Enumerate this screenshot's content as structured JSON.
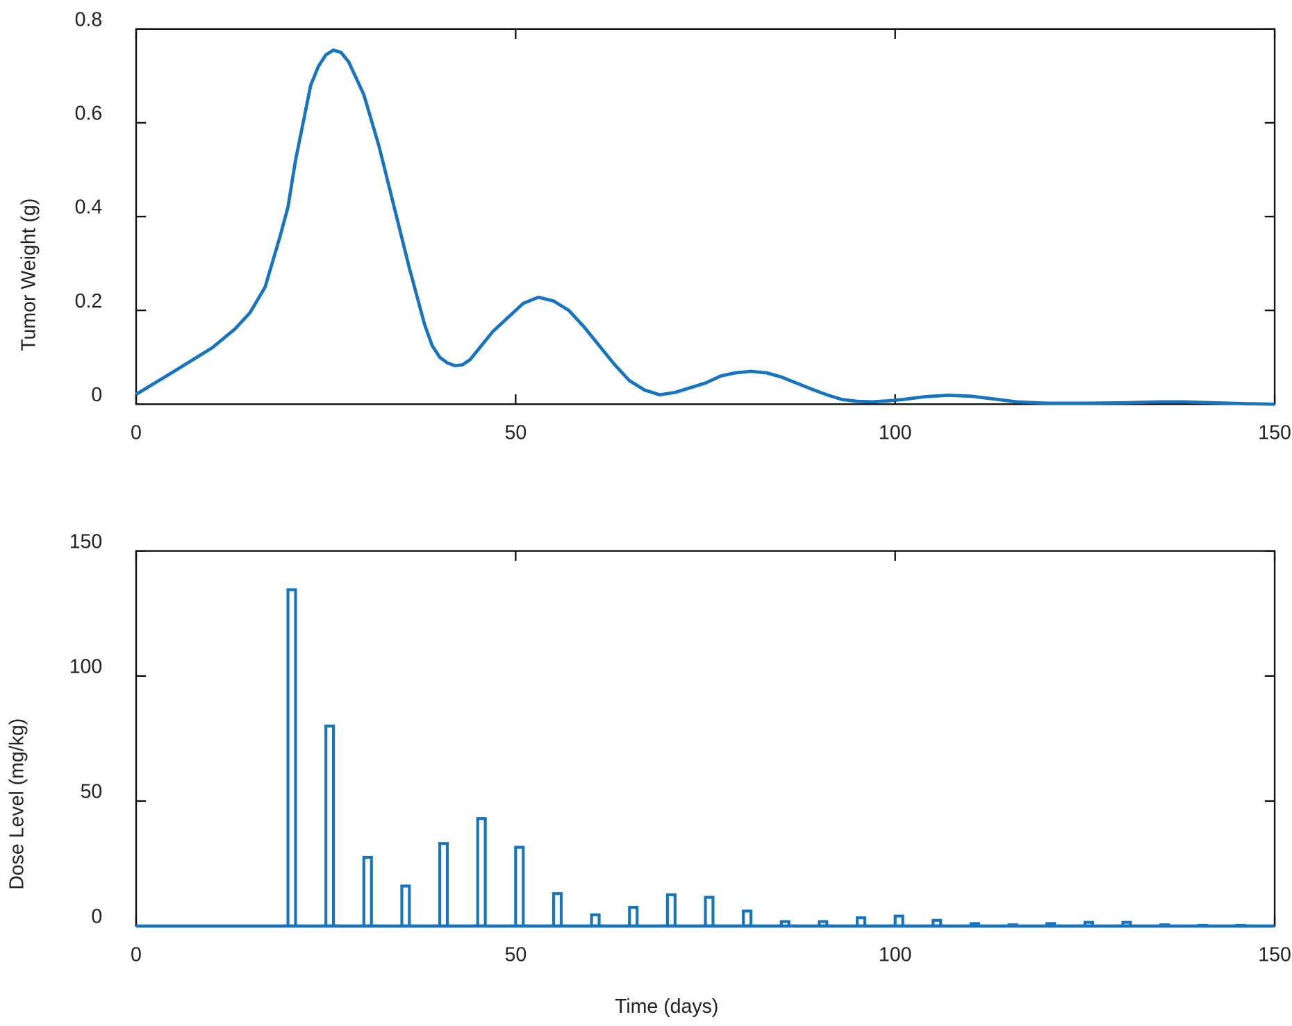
{
  "chart_data": [
    {
      "type": "line",
      "ylabel": "Tumor Weight (g)",
      "series": [
        {
          "color": "#1874bc",
          "x": [
            0,
            5,
            10,
            13,
            15,
            17,
            19,
            20,
            21,
            22,
            23,
            24,
            25,
            26,
            27,
            28,
            30,
            32,
            34,
            36,
            38,
            39,
            40,
            41,
            42,
            43,
            44,
            45,
            47,
            49,
            51,
            53,
            55,
            57,
            59,
            61,
            63,
            65,
            67,
            69,
            71,
            73,
            75,
            77,
            79,
            81,
            83,
            85,
            87,
            89,
            91,
            93,
            95,
            97,
            99,
            101,
            104,
            107,
            110,
            113,
            116,
            120,
            125,
            130,
            135,
            138,
            142,
            146,
            150
          ],
          "values": [
            0.021,
            0.07,
            0.12,
            0.16,
            0.195,
            0.25,
            0.36,
            0.42,
            0.52,
            0.6,
            0.68,
            0.72,
            0.745,
            0.755,
            0.75,
            0.73,
            0.66,
            0.55,
            0.42,
            0.29,
            0.17,
            0.125,
            0.1,
            0.088,
            0.082,
            0.084,
            0.095,
            0.115,
            0.155,
            0.185,
            0.215,
            0.228,
            0.22,
            0.2,
            0.165,
            0.125,
            0.085,
            0.05,
            0.03,
            0.02,
            0.025,
            0.035,
            0.045,
            0.06,
            0.067,
            0.07,
            0.067,
            0.058,
            0.045,
            0.032,
            0.02,
            0.01,
            0.006,
            0.005,
            0.007,
            0.01,
            0.016,
            0.019,
            0.017,
            0.011,
            0.005,
            0.002,
            0.002,
            0.003,
            0.005,
            0.005,
            0.003,
            0.001,
            0
          ]
        }
      ],
      "xlim": [
        0,
        150
      ],
      "xticks": [
        0,
        50,
        100,
        150
      ],
      "ylim": [
        0,
        0.8
      ],
      "yticks": [
        0,
        0.2,
        0.4,
        0.6,
        0.8
      ]
    },
    {
      "type": "bar",
      "xlabel": "Time (days)",
      "ylabel": "Dose Level (mg/kg)",
      "color": "#1874bc",
      "x": [
        20,
        25,
        30,
        35,
        40,
        45,
        50,
        55,
        60,
        65,
        70,
        75,
        80,
        85,
        90,
        95,
        100,
        105,
        110,
        115,
        120,
        125,
        130,
        135,
        140,
        145
      ],
      "values": [
        134.5,
        80,
        27.5,
        16,
        33,
        43,
        31.5,
        13,
        4.5,
        7.5,
        12.5,
        11.5,
        6,
        1.8,
        1.8,
        3.3,
        4,
        2.3,
        1,
        0.5,
        1,
        1.5,
        1.5,
        0.5,
        0.3,
        0.3
      ],
      "bar_width": 1,
      "xlim": [
        0,
        150
      ],
      "xticks": [
        0,
        50,
        100,
        150
      ],
      "ylim": [
        0,
        150
      ],
      "yticks": [
        0,
        50,
        100,
        150
      ]
    }
  ]
}
